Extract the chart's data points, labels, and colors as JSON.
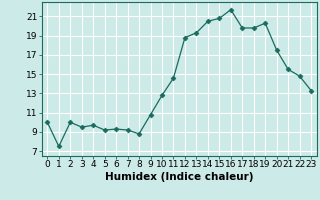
{
  "x": [
    0,
    1,
    2,
    3,
    4,
    5,
    6,
    7,
    8,
    9,
    10,
    11,
    12,
    13,
    14,
    15,
    16,
    17,
    18,
    19,
    20,
    21,
    22,
    23
  ],
  "y": [
    10.0,
    7.5,
    10.0,
    9.5,
    9.7,
    9.2,
    9.3,
    9.2,
    8.8,
    10.8,
    12.8,
    14.6,
    18.8,
    19.3,
    20.5,
    20.8,
    21.7,
    19.8,
    19.8,
    20.3,
    17.5,
    15.5,
    14.8,
    13.3
  ],
  "xlabel": "Humidex (Indice chaleur)",
  "ylim": [
    6.5,
    22.5
  ],
  "xlim": [
    -0.5,
    23.5
  ],
  "yticks": [
    7,
    9,
    11,
    13,
    15,
    17,
    19,
    21
  ],
  "xticks": [
    0,
    1,
    2,
    3,
    4,
    5,
    6,
    7,
    8,
    9,
    10,
    11,
    12,
    13,
    14,
    15,
    16,
    17,
    18,
    19,
    20,
    21,
    22,
    23
  ],
  "line_color": "#1a6b5e",
  "marker": "D",
  "marker_size": 2.5,
  "bg_color": "#cceae7",
  "grid_color": "#ffffff",
  "tick_label_fontsize": 6.5,
  "xlabel_fontsize": 7.5
}
